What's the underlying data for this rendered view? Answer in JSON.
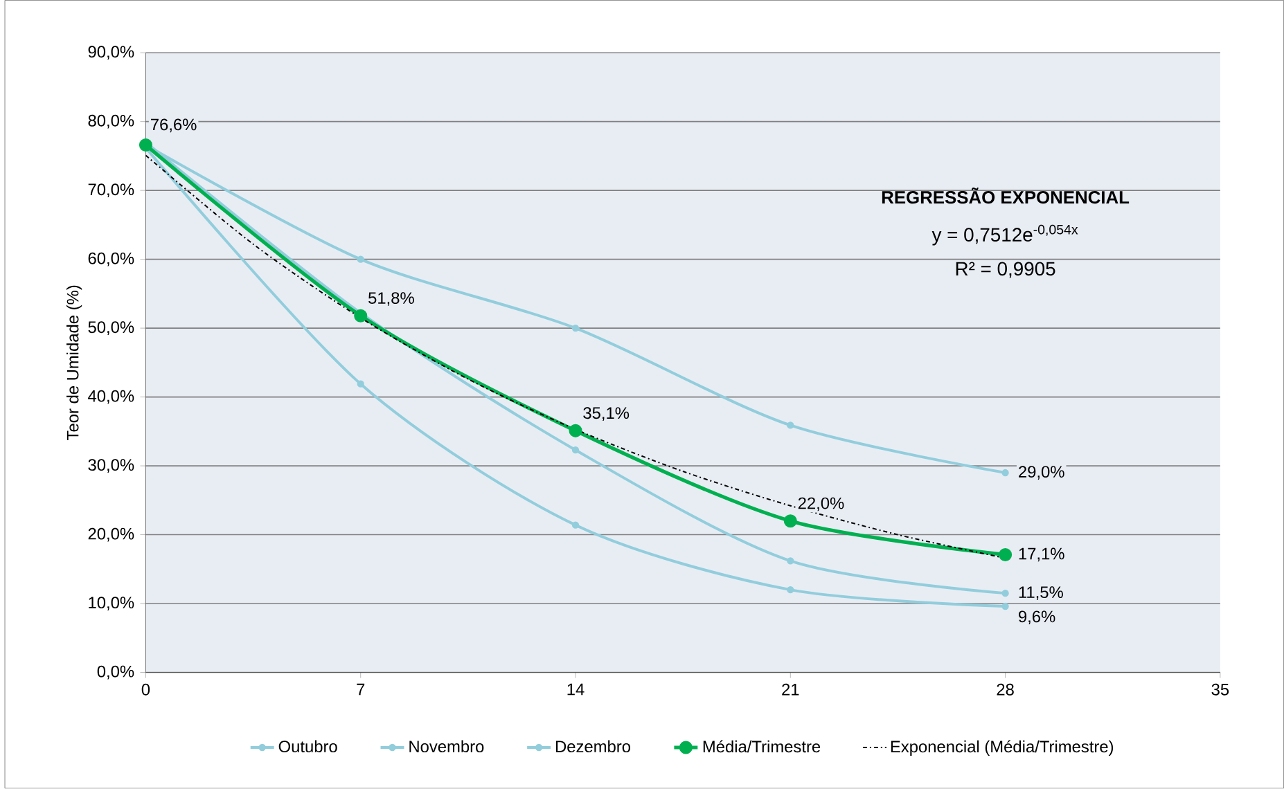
{
  "chart_data": {
    "type": "line",
    "ylabel": "Teor de Umidade (%)",
    "xlim": [
      0,
      35
    ],
    "xticks": [
      0,
      7,
      14,
      21,
      28,
      35
    ],
    "ylim": [
      0,
      90
    ],
    "yticks": [
      {
        "value": 0,
        "label": "0,0%"
      },
      {
        "value": 10,
        "label": "10,0%"
      },
      {
        "value": 20,
        "label": "20,0%"
      },
      {
        "value": 30,
        "label": "30,0%"
      },
      {
        "value": 40,
        "label": "40,0%"
      },
      {
        "value": 50,
        "label": "50,0%"
      },
      {
        "value": 60,
        "label": "60,0%"
      },
      {
        "value": 70,
        "label": "70,0%"
      },
      {
        "value": 80,
        "label": "80,0%"
      },
      {
        "value": 90,
        "label": "90,0%"
      }
    ],
    "x": [
      0,
      7,
      14,
      21,
      28
    ],
    "grid": "y",
    "legend": "bottom",
    "marker": "circle",
    "series": [
      {
        "name": "Outubro",
        "color": "#92cddc",
        "values": [
          76.6,
          60.0,
          50.0,
          35.9,
          29.0
        ],
        "value_labels": [
          null,
          null,
          null,
          null,
          "29,0%"
        ]
      },
      {
        "name": "Novembro",
        "color": "#92cddc",
        "values": [
          77.0,
          52.2,
          32.3,
          16.2,
          11.5
        ],
        "value_labels": [
          null,
          null,
          null,
          null,
          "11,5%"
        ]
      },
      {
        "name": "Dezembro",
        "color": "#92cddc",
        "values": [
          76.2,
          41.9,
          21.4,
          12.0,
          9.6
        ],
        "value_labels": [
          null,
          null,
          null,
          null,
          "9,6%"
        ]
      },
      {
        "name": "Média/Trimestre",
        "color": "#00b050",
        "values": [
          76.6,
          51.8,
          35.1,
          22.0,
          17.1
        ],
        "value_labels": [
          "76,6%",
          "51,8%",
          "35,1%",
          "22,0%",
          "17,1%"
        ]
      },
      {
        "name": "Exponencial (Média/Trimestre)",
        "color": "#000000",
        "marker": "none",
        "line_style": "dashed",
        "x": [
          0,
          3.5,
          7,
          10.5,
          14,
          17.5,
          21,
          24.5,
          28
        ],
        "values": [
          75.1,
          62.2,
          51.5,
          42.6,
          35.3,
          29.2,
          24.2,
          20.0,
          16.6
        ]
      }
    ],
    "annotations": [
      "**REGRESSÃO EXPONENCIAL**",
      "y = 0,7512e$^{-0,054x}$",
      "R² = 0,9905"
    ]
  }
}
